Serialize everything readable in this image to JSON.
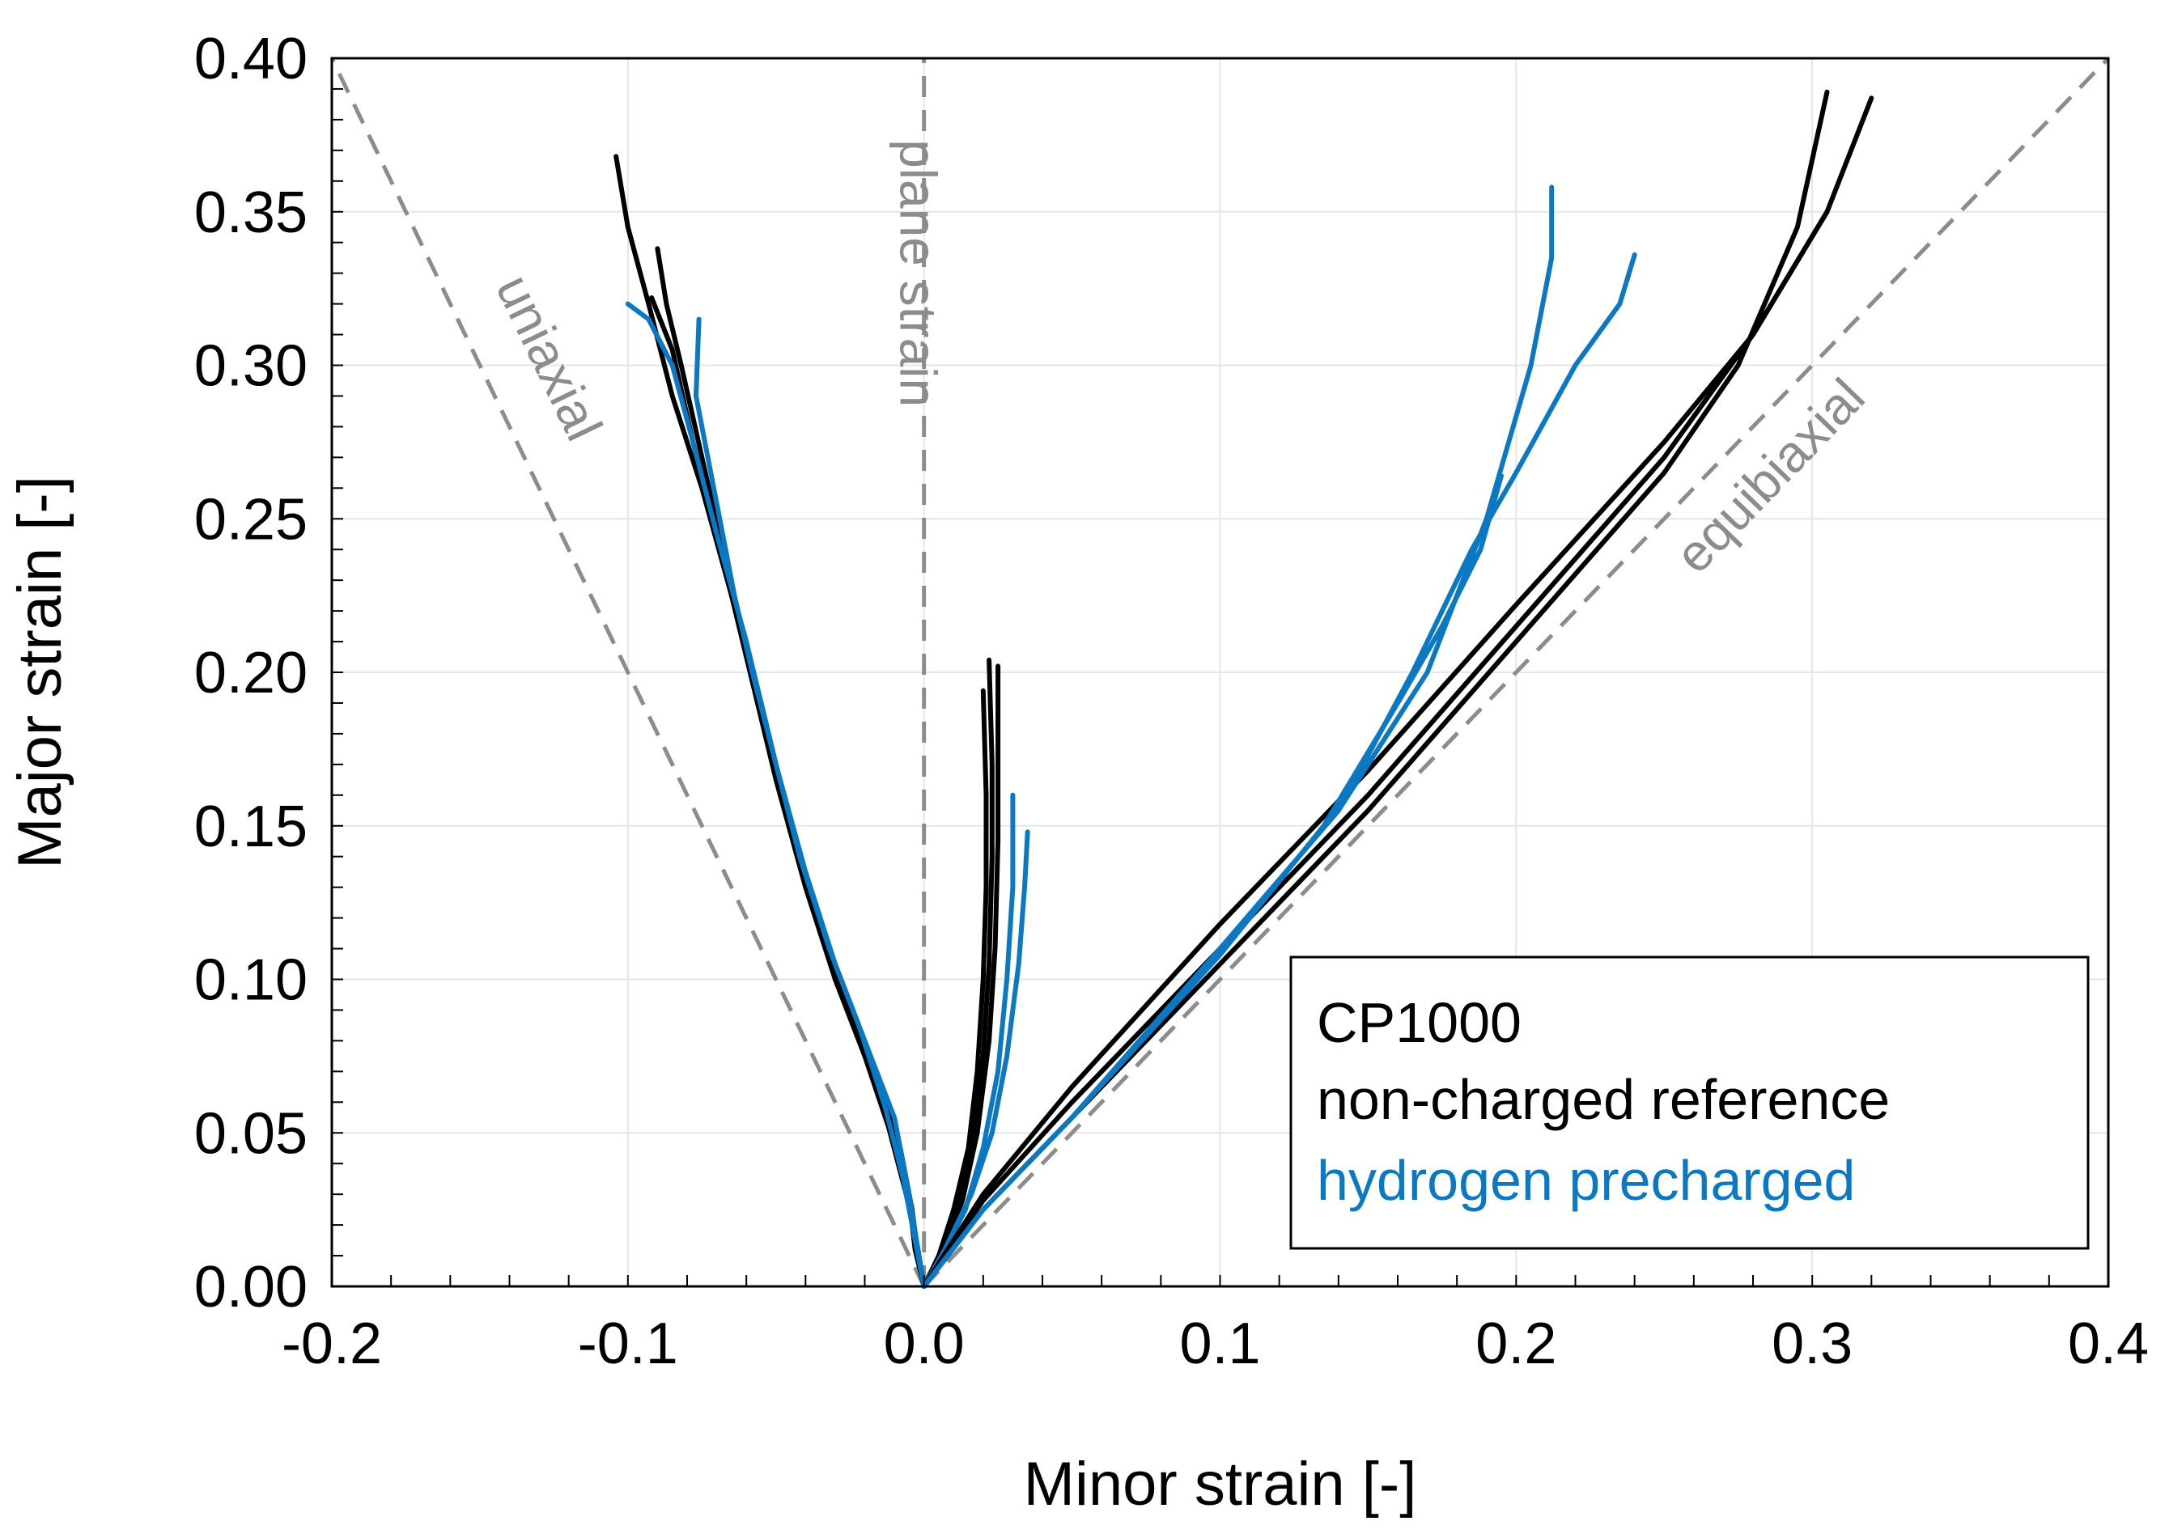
{
  "chart_data": {
    "type": "line",
    "title": "",
    "xlabel": "Minor strain [-]",
    "ylabel": "Major strain [-]",
    "xlim": [
      -0.2,
      0.4
    ],
    "ylim": [
      0.0,
      0.4
    ],
    "grid": true,
    "x_ticks": [
      "-0.2",
      "-0.1",
      "0.0",
      "0.1",
      "0.2",
      "0.3",
      "0.4"
    ],
    "y_ticks": [
      "0.00",
      "0.05",
      "0.10",
      "0.15",
      "0.20",
      "0.25",
      "0.30",
      "0.35",
      "0.40"
    ],
    "colors": {
      "reference": "#000000",
      "precharged": "#0a78c2",
      "guide": "#8c8c8c"
    },
    "reference_lines": [
      {
        "name": "uniaxial",
        "label": "uniaxial",
        "points": [
          [
            0.0,
            0.0
          ],
          [
            -0.2,
            0.4
          ]
        ]
      },
      {
        "name": "plane-strain",
        "label": "plane strain",
        "points": [
          [
            0.0,
            0.0
          ],
          [
            0.0,
            0.4
          ]
        ]
      },
      {
        "name": "equibiaxial",
        "label": "equibiaxial",
        "points": [
          [
            0.0,
            0.0
          ],
          [
            0.4,
            0.4
          ]
        ]
      }
    ],
    "legend": {
      "position": "bottom-right",
      "title": "CP1000",
      "entries": [
        {
          "label": "non-charged reference",
          "group": "reference"
        },
        {
          "label": "hydrogen precharged",
          "group": "precharged"
        }
      ]
    },
    "series": [
      {
        "name": "reference uniaxial 1",
        "group": "reference",
        "points": [
          [
            0,
            0
          ],
          [
            -0.002,
            0.01
          ],
          [
            -0.004,
            0.025
          ],
          [
            -0.008,
            0.045
          ],
          [
            -0.015,
            0.065
          ],
          [
            -0.025,
            0.09
          ],
          [
            -0.035,
            0.115
          ],
          [
            -0.045,
            0.15
          ],
          [
            -0.055,
            0.19
          ],
          [
            -0.065,
            0.225
          ],
          [
            -0.075,
            0.26
          ],
          [
            -0.085,
            0.29
          ],
          [
            -0.093,
            0.32
          ],
          [
            -0.1,
            0.345
          ],
          [
            -0.104,
            0.368
          ]
        ]
      },
      {
        "name": "reference uniaxial 2",
        "group": "reference",
        "points": [
          [
            0,
            0
          ],
          [
            -0.003,
            0.012
          ],
          [
            -0.005,
            0.028
          ],
          [
            -0.01,
            0.05
          ],
          [
            -0.018,
            0.072
          ],
          [
            -0.028,
            0.098
          ],
          [
            -0.038,
            0.125
          ],
          [
            -0.048,
            0.16
          ],
          [
            -0.058,
            0.2
          ],
          [
            -0.068,
            0.24
          ],
          [
            -0.075,
            0.27
          ],
          [
            -0.082,
            0.3
          ],
          [
            -0.087,
            0.32
          ],
          [
            -0.09,
            0.338
          ]
        ]
      },
      {
        "name": "reference uniaxial 3",
        "group": "reference",
        "points": [
          [
            0,
            0
          ],
          [
            -0.002,
            0.012
          ],
          [
            -0.006,
            0.03
          ],
          [
            -0.012,
            0.052
          ],
          [
            -0.02,
            0.075
          ],
          [
            -0.03,
            0.1
          ],
          [
            -0.04,
            0.13
          ],
          [
            -0.05,
            0.165
          ],
          [
            -0.06,
            0.205
          ],
          [
            -0.07,
            0.245
          ],
          [
            -0.078,
            0.275
          ],
          [
            -0.085,
            0.305
          ],
          [
            -0.092,
            0.322
          ]
        ]
      },
      {
        "name": "precharged uniaxial 1",
        "group": "precharged",
        "points": [
          [
            0,
            0
          ],
          [
            -0.002,
            0.012
          ],
          [
            -0.005,
            0.03
          ],
          [
            -0.01,
            0.055
          ],
          [
            -0.02,
            0.08
          ],
          [
            -0.03,
            0.105
          ],
          [
            -0.04,
            0.135
          ],
          [
            -0.05,
            0.17
          ],
          [
            -0.06,
            0.21
          ],
          [
            -0.07,
            0.245
          ],
          [
            -0.078,
            0.275
          ],
          [
            -0.085,
            0.3
          ],
          [
            -0.093,
            0.315
          ],
          [
            -0.1,
            0.32
          ]
        ]
      },
      {
        "name": "precharged uniaxial 2",
        "group": "precharged",
        "points": [
          [
            0,
            0
          ],
          [
            -0.003,
            0.015
          ],
          [
            -0.007,
            0.035
          ],
          [
            -0.013,
            0.058
          ],
          [
            -0.022,
            0.085
          ],
          [
            -0.032,
            0.11
          ],
          [
            -0.042,
            0.14
          ],
          [
            -0.05,
            0.17
          ],
          [
            -0.058,
            0.2
          ],
          [
            -0.064,
            0.225
          ],
          [
            -0.07,
            0.255
          ],
          [
            -0.073,
            0.27
          ],
          [
            -0.077,
            0.29
          ],
          [
            -0.076,
            0.315
          ]
        ]
      },
      {
        "name": "reference plane strain 1",
        "group": "reference",
        "points": [
          [
            0,
            0
          ],
          [
            0.005,
            0.01
          ],
          [
            0.01,
            0.025
          ],
          [
            0.015,
            0.045
          ],
          [
            0.018,
            0.07
          ],
          [
            0.02,
            0.1
          ],
          [
            0.021,
            0.13
          ],
          [
            0.021,
            0.16
          ],
          [
            0.02,
            0.194
          ]
        ]
      },
      {
        "name": "reference plane strain 2",
        "group": "reference",
        "points": [
          [
            0,
            0
          ],
          [
            0.006,
            0.012
          ],
          [
            0.012,
            0.03
          ],
          [
            0.017,
            0.05
          ],
          [
            0.02,
            0.075
          ],
          [
            0.022,
            0.105
          ],
          [
            0.023,
            0.14
          ],
          [
            0.023,
            0.17
          ],
          [
            0.022,
            0.204
          ]
        ]
      },
      {
        "name": "reference plane strain 3",
        "group": "reference",
        "points": [
          [
            0,
            0
          ],
          [
            0.006,
            0.01
          ],
          [
            0.013,
            0.028
          ],
          [
            0.018,
            0.05
          ],
          [
            0.022,
            0.08
          ],
          [
            0.024,
            0.11
          ],
          [
            0.025,
            0.145
          ],
          [
            0.025,
            0.175
          ],
          [
            0.025,
            0.202
          ]
        ]
      },
      {
        "name": "precharged plane strain 1",
        "group": "precharged",
        "points": [
          [
            0,
            0
          ],
          [
            0.006,
            0.01
          ],
          [
            0.014,
            0.025
          ],
          [
            0.02,
            0.045
          ],
          [
            0.025,
            0.07
          ],
          [
            0.028,
            0.1
          ],
          [
            0.03,
            0.13
          ],
          [
            0.03,
            0.16
          ]
        ]
      },
      {
        "name": "precharged plane strain 2",
        "group": "precharged",
        "points": [
          [
            0,
            0
          ],
          [
            0.007,
            0.012
          ],
          [
            0.016,
            0.03
          ],
          [
            0.023,
            0.05
          ],
          [
            0.028,
            0.075
          ],
          [
            0.032,
            0.105
          ],
          [
            0.034,
            0.13
          ],
          [
            0.035,
            0.148
          ]
        ]
      },
      {
        "name": "reference equibiaxial 1",
        "group": "reference",
        "points": [
          [
            0,
            0
          ],
          [
            0.02,
            0.025
          ],
          [
            0.05,
            0.055
          ],
          [
            0.1,
            0.105
          ],
          [
            0.15,
            0.155
          ],
          [
            0.2,
            0.21
          ],
          [
            0.25,
            0.265
          ],
          [
            0.275,
            0.3
          ],
          [
            0.295,
            0.345
          ],
          [
            0.305,
            0.389
          ]
        ]
      },
      {
        "name": "reference equibiaxial 2",
        "group": "reference",
        "points": [
          [
            0,
            0
          ],
          [
            0.02,
            0.028
          ],
          [
            0.05,
            0.06
          ],
          [
            0.1,
            0.11
          ],
          [
            0.15,
            0.16
          ],
          [
            0.2,
            0.215
          ],
          [
            0.25,
            0.27
          ],
          [
            0.28,
            0.31
          ],
          [
            0.305,
            0.35
          ],
          [
            0.32,
            0.387
          ]
        ]
      },
      {
        "name": "reference equibiaxial 3",
        "group": "reference",
        "points": [
          [
            0,
            0
          ],
          [
            0.02,
            0.03
          ],
          [
            0.05,
            0.065
          ],
          [
            0.1,
            0.118
          ],
          [
            0.15,
            0.168
          ],
          [
            0.2,
            0.222
          ],
          [
            0.25,
            0.275
          ],
          [
            0.28,
            0.31
          ],
          [
            0.305,
            0.35
          ]
        ]
      },
      {
        "name": "precharged equibiaxial 1",
        "group": "precharged",
        "points": [
          [
            0,
            0
          ],
          [
            0.02,
            0.025
          ],
          [
            0.05,
            0.055
          ],
          [
            0.1,
            0.11
          ],
          [
            0.14,
            0.155
          ],
          [
            0.17,
            0.2
          ],
          [
            0.19,
            0.25
          ],
          [
            0.205,
            0.3
          ],
          [
            0.212,
            0.335
          ],
          [
            0.212,
            0.358
          ]
        ]
      },
      {
        "name": "precharged equibiaxial 2",
        "group": "precharged",
        "points": [
          [
            0,
            0
          ],
          [
            0.02,
            0.025
          ],
          [
            0.05,
            0.055
          ],
          [
            0.1,
            0.11
          ],
          [
            0.14,
            0.155
          ],
          [
            0.165,
            0.2
          ],
          [
            0.185,
            0.24
          ],
          [
            0.2,
            0.265
          ],
          [
            0.22,
            0.3
          ],
          [
            0.235,
            0.32
          ],
          [
            0.24,
            0.336
          ]
        ]
      },
      {
        "name": "precharged equibiaxial 3",
        "group": "precharged",
        "points": [
          [
            0,
            0
          ],
          [
            0.02,
            0.025
          ],
          [
            0.05,
            0.055
          ],
          [
            0.1,
            0.108
          ],
          [
            0.135,
            0.15
          ],
          [
            0.16,
            0.19
          ],
          [
            0.175,
            0.215
          ],
          [
            0.188,
            0.24
          ],
          [
            0.195,
            0.264
          ]
        ]
      }
    ]
  }
}
